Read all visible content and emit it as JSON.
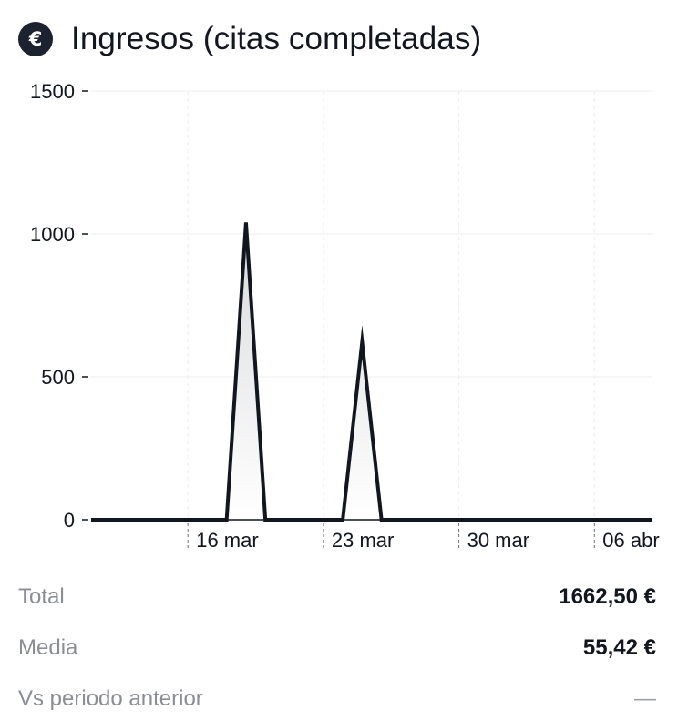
{
  "header": {
    "icon": "euro-icon",
    "icon_glyph": "€",
    "title": "Ingresos (citas completadas)"
  },
  "chart_data": {
    "type": "area",
    "title": "Ingresos (citas completadas)",
    "xlabel": "",
    "ylabel": "",
    "ylim": [
      0,
      1500
    ],
    "yticks": [
      0,
      500,
      1000,
      1500
    ],
    "x_ticks": [
      {
        "label": "16 mar",
        "date": "2025-03-16"
      },
      {
        "label": "23 mar",
        "date": "2025-03-23"
      },
      {
        "label": "30 mar",
        "date": "2025-03-30"
      },
      {
        "label": "06 abr",
        "date": "2025-04-06"
      }
    ],
    "grid": true,
    "series": [
      {
        "points": [
          {
            "date": "2025-03-11",
            "value": 0
          },
          {
            "date": "2025-03-12",
            "value": 0
          },
          {
            "date": "2025-03-13",
            "value": 0
          },
          {
            "date": "2025-03-14",
            "value": 0
          },
          {
            "date": "2025-03-15",
            "value": 0
          },
          {
            "date": "2025-03-16",
            "value": 0
          },
          {
            "date": "2025-03-17",
            "value": 0
          },
          {
            "date": "2025-03-18",
            "value": 0
          },
          {
            "date": "2025-03-19",
            "value": 1040
          },
          {
            "date": "2025-03-20",
            "value": 0
          },
          {
            "date": "2025-03-21",
            "value": 0
          },
          {
            "date": "2025-03-22",
            "value": 0
          },
          {
            "date": "2025-03-23",
            "value": 0
          },
          {
            "date": "2025-03-24",
            "value": 0
          },
          {
            "date": "2025-03-25",
            "value": 622.5
          },
          {
            "date": "2025-03-26",
            "value": 0
          },
          {
            "date": "2025-03-27",
            "value": 0
          },
          {
            "date": "2025-03-28",
            "value": 0
          },
          {
            "date": "2025-03-29",
            "value": 0
          },
          {
            "date": "2025-03-30",
            "value": 0
          },
          {
            "date": "2025-03-31",
            "value": 0
          },
          {
            "date": "2025-04-01",
            "value": 0
          },
          {
            "date": "2025-04-02",
            "value": 0
          },
          {
            "date": "2025-04-03",
            "value": 0
          },
          {
            "date": "2025-04-04",
            "value": 0
          },
          {
            "date": "2025-04-05",
            "value": 0
          },
          {
            "date": "2025-04-06",
            "value": 0
          },
          {
            "date": "2025-04-07",
            "value": 0
          },
          {
            "date": "2025-04-08",
            "value": 0
          },
          {
            "date": "2025-04-09",
            "value": 0
          }
        ]
      }
    ],
    "colors": {
      "line": "#11161f",
      "area_top": "#d9dadd",
      "area_bottom": "#ffffff",
      "grid": "#ececee",
      "axis": "#11161f"
    }
  },
  "stats": {
    "total": {
      "label": "Total",
      "value": "1662,50 €"
    },
    "media": {
      "label": "Media",
      "value": "55,42 €"
    },
    "vs": {
      "label": "Vs periodo anterior",
      "value": "—"
    }
  }
}
